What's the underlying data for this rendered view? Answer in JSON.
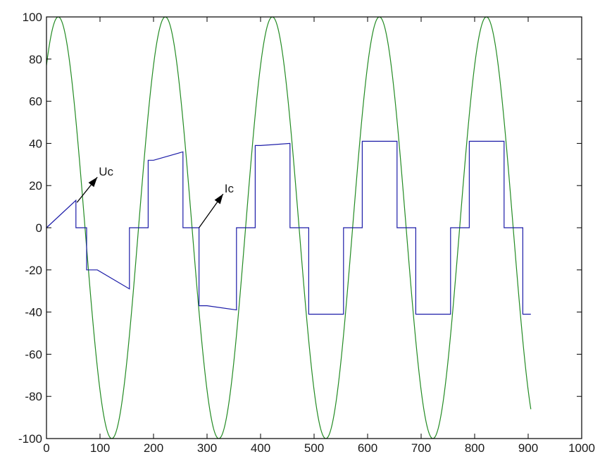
{
  "chart_data": {
    "type": "line",
    "title": "",
    "xlabel": "",
    "ylabel": "",
    "xlim": [
      0,
      1000
    ],
    "ylim": [
      -100,
      100
    ],
    "x_ticks": [
      0,
      100,
      200,
      300,
      400,
      500,
      600,
      700,
      800,
      900,
      1000
    ],
    "y_ticks": [
      -100,
      -80,
      -60,
      -40,
      -20,
      0,
      20,
      40,
      60,
      80,
      100
    ],
    "grid": false,
    "legend": "none",
    "series": [
      {
        "color": "#238b23",
        "function": "100*cos(2*pi*(x-22)/200)",
        "x_range": [
          0,
          905
        ]
      },
      {
        "color": "#1c1ca8",
        "points": [
          [
            0,
            0
          ],
          [
            55,
            13
          ],
          [
            55,
            0
          ],
          [
            75,
            0
          ],
          [
            75,
            -20
          ],
          [
            95,
            -20
          ],
          [
            155,
            -29
          ],
          [
            155,
            0
          ],
          [
            170,
            0
          ],
          [
            170,
            0
          ],
          [
            190,
            0
          ],
          [
            190,
            32
          ],
          [
            200,
            32
          ],
          [
            255,
            36
          ],
          [
            255,
            0
          ],
          [
            275,
            0
          ],
          [
            275,
            0
          ],
          [
            285,
            0
          ],
          [
            285,
            -37
          ],
          [
            300,
            -37
          ],
          [
            355,
            -39
          ],
          [
            355,
            0
          ],
          [
            370,
            0
          ],
          [
            370,
            0
          ],
          [
            390,
            0
          ],
          [
            390,
            39
          ],
          [
            400,
            39
          ],
          [
            455,
            40
          ],
          [
            455,
            0
          ],
          [
            470,
            0
          ],
          [
            470,
            0
          ],
          [
            490,
            0
          ],
          [
            490,
            -41
          ],
          [
            555,
            -41
          ],
          [
            555,
            0
          ],
          [
            570,
            0
          ],
          [
            570,
            0
          ],
          [
            590,
            0
          ],
          [
            590,
            41
          ],
          [
            655,
            41
          ],
          [
            655,
            0
          ],
          [
            670,
            0
          ],
          [
            670,
            0
          ],
          [
            690,
            0
          ],
          [
            690,
            -41
          ],
          [
            755,
            -41
          ],
          [
            755,
            0
          ],
          [
            770,
            0
          ],
          [
            770,
            0
          ],
          [
            790,
            0
          ],
          [
            790,
            41
          ],
          [
            855,
            41
          ],
          [
            855,
            0
          ],
          [
            870,
            0
          ],
          [
            870,
            0
          ],
          [
            890,
            0
          ],
          [
            890,
            -41
          ],
          [
            905,
            -41
          ]
        ]
      }
    ],
    "annotations": [
      {
        "text": "Uc",
        "from": [
          57,
          12
        ],
        "to": [
          95,
          24
        ]
      },
      {
        "text": "Ic",
        "from": [
          285,
          0
        ],
        "to": [
          330,
          16
        ]
      }
    ]
  }
}
